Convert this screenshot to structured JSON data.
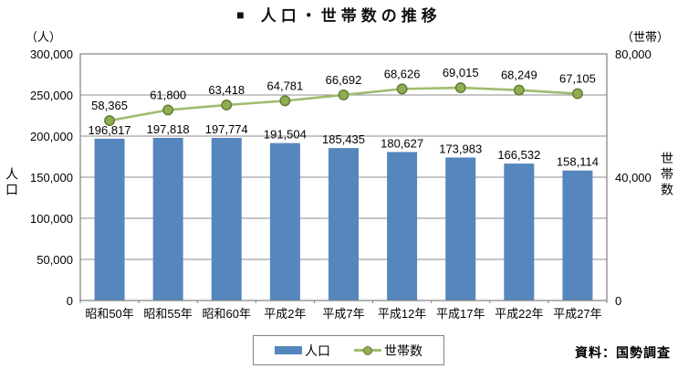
{
  "title": {
    "bullet": "■",
    "text": "人口・世帯数の推移"
  },
  "chart_data": {
    "type": "bar+line",
    "title": "人口・世帯数の推移",
    "categories": [
      "昭和50年",
      "昭和55年",
      "昭和60年",
      "平成2年",
      "平成7年",
      "平成12年",
      "平成17年",
      "平成22年",
      "平成27年"
    ],
    "series": [
      {
        "name": "人口",
        "type": "bar",
        "axis": "left",
        "values": [
          196817,
          197818,
          197774,
          191504,
          185435,
          180627,
          173983,
          166532,
          158114
        ],
        "labels": [
          "196,817",
          "197,818",
          "197,774",
          "191,504",
          "185,435",
          "180,627",
          "173,983",
          "166,532",
          "158,114"
        ],
        "color": "#5586BE"
      },
      {
        "name": "世帯数",
        "type": "line",
        "axis": "right",
        "values": [
          58365,
          61800,
          63418,
          64781,
          66692,
          68626,
          69015,
          68249,
          67105
        ],
        "labels": [
          "58,365",
          "61,800",
          "63,418",
          "64,781",
          "66,692",
          "68,626",
          "69,015",
          "68,249",
          "67,105"
        ],
        "color": "#A0BC6E",
        "marker_fill": "#90AD53",
        "marker_stroke": "#647D35"
      }
    ],
    "left_axis": {
      "unit": "（人）",
      "label": "人口",
      "min": 0,
      "max": 300000,
      "tick_step": 50000,
      "tick_labels": [
        "0",
        "50,000",
        "100,000",
        "150,000",
        "200,000",
        "250,000",
        "300,000"
      ]
    },
    "right_axis": {
      "unit": "（世帯）",
      "label": "世帯数",
      "min": 0,
      "max": 80000,
      "tick_step": 40000,
      "tick_labels": [
        "0",
        "40,000",
        "80,000"
      ]
    },
    "grid": true,
    "legend_position": "bottom",
    "source": "資料：国勢調査",
    "grid_color": "#8C8C8C",
    "border_color": "#7F7F7F"
  }
}
